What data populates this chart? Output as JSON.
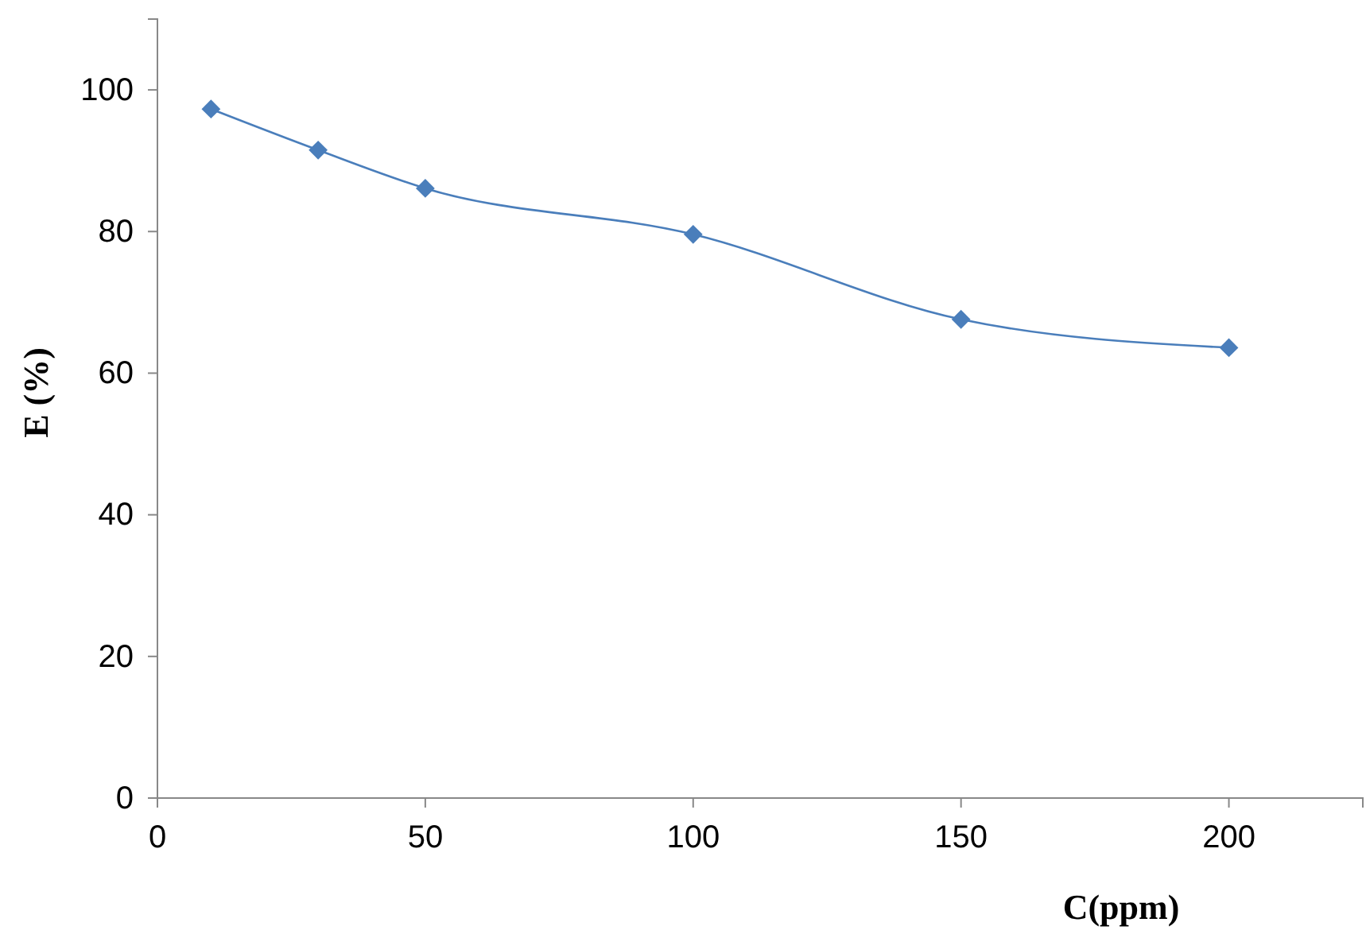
{
  "chart_data": {
    "type": "line",
    "xlabel": "C(ppm)",
    "ylabel": "E (%)",
    "x": [
      10,
      30,
      50,
      100,
      150,
      200
    ],
    "series": [
      {
        "color": "#4a7ebb",
        "values": [
          97.3,
          91.5,
          86.1,
          79.6,
          67.6,
          63.6
        ]
      }
    ],
    "xlim": [
      0,
      225
    ],
    "ylim": [
      0,
      110
    ],
    "xticks": [
      0,
      50,
      100,
      150,
      200
    ],
    "yticks": [
      0,
      20,
      40,
      60,
      80,
      100
    ],
    "marker": "diamond",
    "line_style": "solid",
    "grid": false
  }
}
